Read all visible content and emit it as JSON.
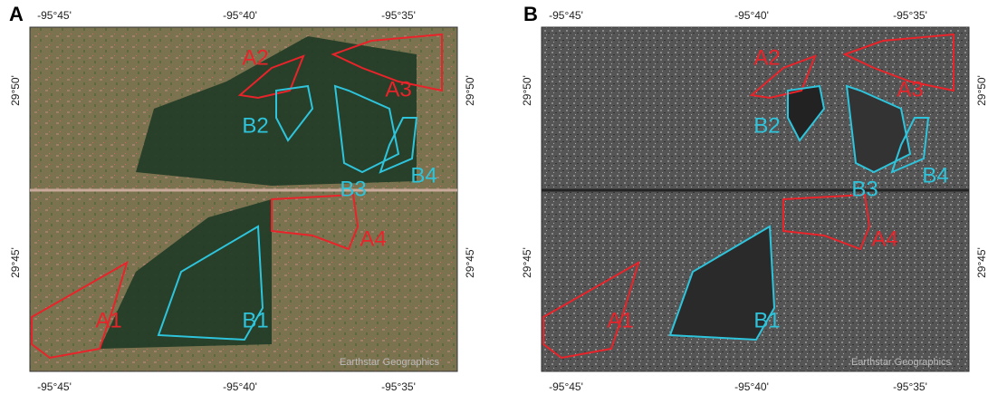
{
  "panels": [
    {
      "label": "A",
      "top_ticks": [
        "-95°45'",
        "-95°40'",
        "-95°35'"
      ],
      "bottom_ticks": [
        "-95°45'",
        "-95°40'",
        "-95°35'"
      ],
      "left_ticks": [
        "29°50'",
        "29°45'"
      ],
      "right_ticks": [
        "29°50'",
        "29°45'"
      ],
      "regions": [
        "A1",
        "A2",
        "A3",
        "A4",
        "B1",
        "B2",
        "B3",
        "B4"
      ],
      "attribution": "Earthstar Geographics"
    },
    {
      "label": "B",
      "top_ticks": [
        "-95°45'",
        "-95°40'",
        "-95°35'"
      ],
      "bottom_ticks": [
        "-95°45'",
        "-95°40'",
        "-95°35'"
      ],
      "left_ticks": [
        "29°50'",
        "29°45'"
      ],
      "right_ticks": [
        "29°50'",
        "29°45'"
      ],
      "regions": [
        "A1",
        "A2",
        "A3",
        "A4",
        "B1",
        "B2",
        "B3",
        "B4"
      ],
      "attribution": "Earthstar Geographics"
    }
  ]
}
